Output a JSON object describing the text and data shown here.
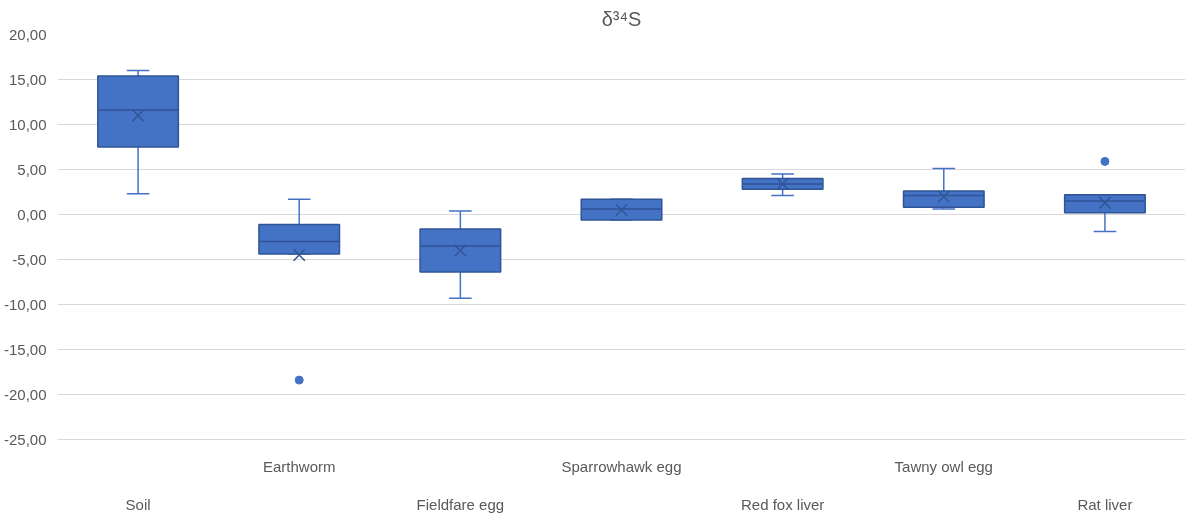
{
  "chart_data": {
    "type": "box",
    "title": "δ³⁴S",
    "categories": [
      "Soil",
      "Earthworm",
      "Fieldfare egg",
      "Sparrowhawk egg",
      "Red fox liver",
      "Tawny owl egg",
      "Rat liver"
    ],
    "color": "#4472c4",
    "boxes": [
      {
        "low": 2.3,
        "q1": 7.5,
        "median": 11.6,
        "q3": 15.4,
        "high": 16.0,
        "mean": 11.0
      },
      {
        "low": -4.4,
        "q1": -4.4,
        "median": -3.0,
        "q3": -1.1,
        "high": 1.7,
        "mean": -4.5,
        "outliers": [
          -18.4
        ]
      },
      {
        "low": -9.3,
        "q1": -6.4,
        "median": -3.5,
        "q3": -1.6,
        "high": 0.4,
        "mean": -4.0
      },
      {
        "low": -0.6,
        "q1": -0.6,
        "median": 0.6,
        "q3": 1.7,
        "high": 1.7,
        "mean": 0.5
      },
      {
        "low": 2.1,
        "q1": 2.8,
        "median": 3.4,
        "q3": 4.0,
        "high": 4.5,
        "mean": 3.4
      },
      {
        "low": 0.6,
        "q1": 0.8,
        "median": 2.1,
        "q3": 2.6,
        "high": 5.1,
        "mean": 2.0
      },
      {
        "low": -1.9,
        "q1": 0.2,
        "median": 1.5,
        "q3": 2.2,
        "high": 2.2,
        "mean": 1.3,
        "outliers": [
          5.9
        ]
      }
    ],
    "ylim": [
      -25,
      20
    ],
    "yticks": [
      {
        "value": -25,
        "label": "-25,00"
      },
      {
        "value": -20,
        "label": "-20,00"
      },
      {
        "value": -15,
        "label": "-15,00"
      },
      {
        "value": -10,
        "label": "-10,00"
      },
      {
        "value": -5,
        "label": "-5,00"
      },
      {
        "value": 0,
        "label": "0,00"
      },
      {
        "value": 5,
        "label": "5,00"
      },
      {
        "value": 10,
        "label": "10,00"
      },
      {
        "value": 15,
        "label": "15,00"
      },
      {
        "value": 20,
        "label": "20,00"
      }
    ],
    "grid": "y"
  }
}
